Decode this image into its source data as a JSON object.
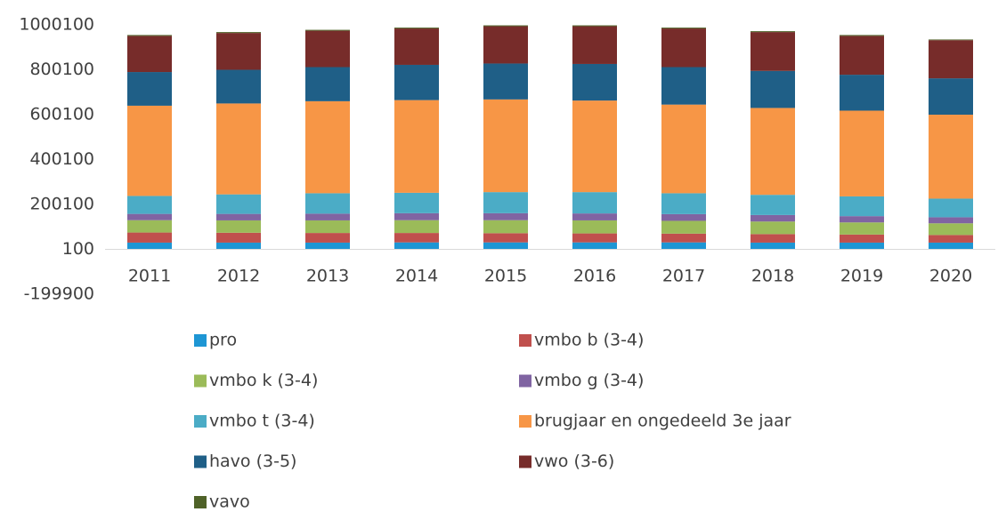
{
  "chart_data": {
    "type": "bar",
    "stacked": true,
    "categories": [
      "2011",
      "2012",
      "2013",
      "2014",
      "2015",
      "2016",
      "2017",
      "2018",
      "2019",
      "2020"
    ],
    "series": [
      {
        "name": "pro",
        "color": "#1e96d4",
        "values": [
          30000,
          30000,
          30000,
          31000,
          31000,
          31000,
          31000,
          30000,
          30000,
          30000
        ]
      },
      {
        "name": "vmbo b (3-4)",
        "color": "#c0504d",
        "values": [
          45000,
          44000,
          43000,
          42000,
          41000,
          40000,
          39000,
          38000,
          36000,
          34000
        ]
      },
      {
        "name": "vmbo k (3-4)",
        "color": "#9bbb59",
        "values": [
          55000,
          55000,
          56000,
          57000,
          58000,
          58000,
          57000,
          56000,
          54000,
          52000
        ]
      },
      {
        "name": "vmbo g (3-4)",
        "color": "#8064a2",
        "values": [
          28000,
          29000,
          30000,
          31000,
          31000,
          31000,
          30000,
          29000,
          28000,
          27000
        ]
      },
      {
        "name": "vmbo t (3-4)",
        "color": "#4bacc6",
        "values": [
          80000,
          87000,
          91000,
          91000,
          94000,
          95000,
          93000,
          90000,
          88000,
          83000
        ]
      },
      {
        "name": "brugjaar en ongedeeld 3e jaar",
        "color": "#f79646",
        "values": [
          402000,
          405000,
          410000,
          413000,
          413000,
          408000,
          395000,
          387000,
          382000,
          374000
        ]
      },
      {
        "name": "havo (3-5)",
        "color": "#1f5f87",
        "values": [
          150000,
          150000,
          152000,
          157000,
          160000,
          163000,
          167000,
          165000,
          160000,
          162000
        ]
      },
      {
        "name": "vwo (3-6)",
        "color": "#772c2a",
        "values": [
          161000,
          164000,
          162000,
          162000,
          166000,
          168000,
          172000,
          173000,
          173000,
          170000
        ]
      },
      {
        "name": "vavo",
        "color": "#4f6228",
        "values": [
          4000,
          4000,
          4000,
          4000,
          4000,
          4000,
          4000,
          4000,
          4000,
          3000
        ]
      }
    ],
    "ylim": [
      -199900,
      1000100
    ],
    "yticks": [
      -199900,
      100,
      200100,
      400100,
      600100,
      800100,
      1000100
    ],
    "grid": false
  }
}
